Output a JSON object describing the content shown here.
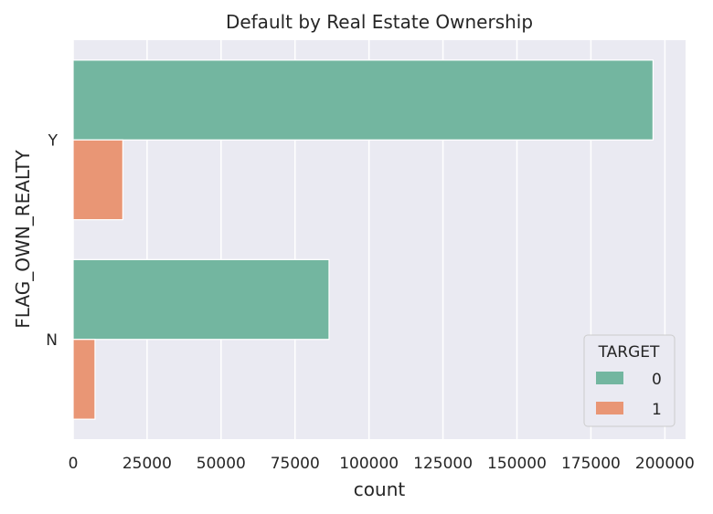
{
  "chart_data": {
    "type": "bar",
    "orientation": "horizontal",
    "title": "Default by Real Estate Ownership",
    "xlabel": "count",
    "ylabel": "FLAG_OWN_REALTY",
    "categories": [
      "Y",
      "N"
    ],
    "xlim": [
      0,
      207000
    ],
    "xticks": [
      0,
      25000,
      50000,
      75000,
      100000,
      125000,
      150000,
      175000,
      200000
    ],
    "xtick_labels": [
      "0",
      "25000",
      "50000",
      "75000",
      "100000",
      "125000",
      "150000",
      "175000",
      "200000"
    ],
    "grid": true,
    "legend": {
      "title": "TARGET",
      "placement": "bottom-right"
    },
    "series": [
      {
        "name": "0",
        "color": "#73b6a0",
        "values": [
          196000,
          86500
        ]
      },
      {
        "name": "1",
        "color": "#e99675",
        "values": [
          16800,
          7400
        ]
      }
    ],
    "background_color": "#eaeaf2"
  }
}
